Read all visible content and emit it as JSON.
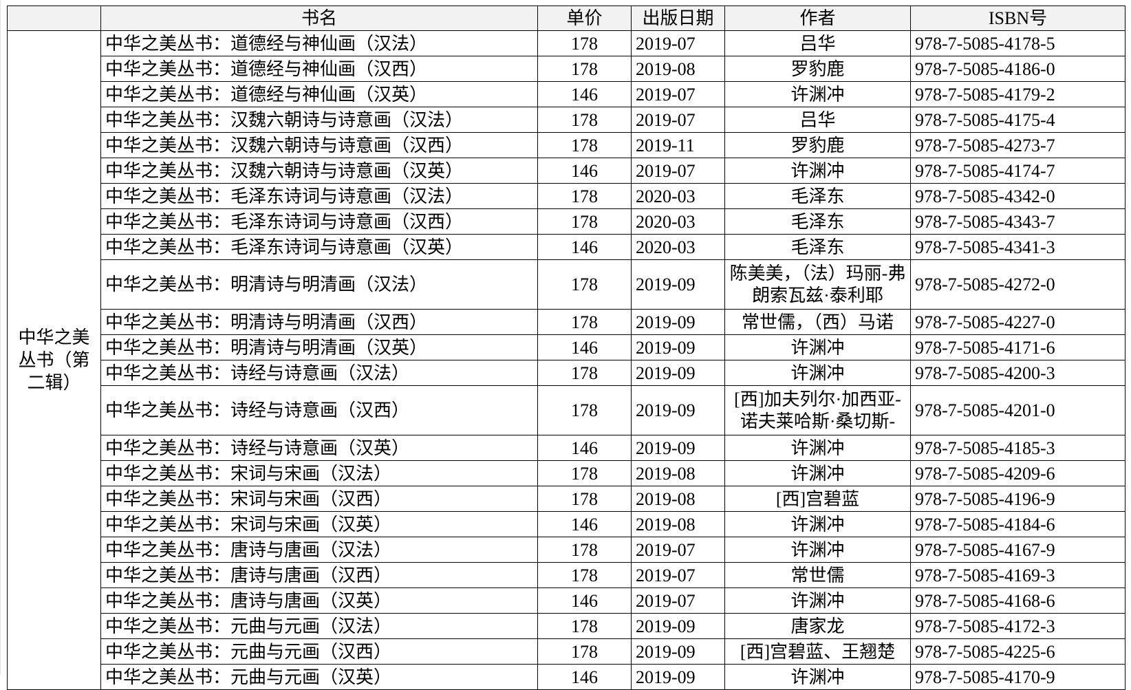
{
  "headers": {
    "corner": "",
    "title": "书名",
    "price": "单价",
    "date": "出版日期",
    "author": "作者",
    "isbn": "ISBN号"
  },
  "series_label": "中华之美丛书（第二辑）",
  "rows": [
    {
      "title": "中华之美丛书：道德经与神仙画（汉法）",
      "price": "178",
      "date": "2019-07",
      "author": "吕华",
      "isbn": "978-7-5085-4178-5"
    },
    {
      "title": "中华之美丛书：道德经与神仙画（汉西）",
      "price": "178",
      "date": "2019-08",
      "author": "罗豹鹿",
      "isbn": "978-7-5085-4186-0"
    },
    {
      "title": "中华之美丛书：道德经与神仙画（汉英）",
      "price": "146",
      "date": "2019-07",
      "author": "许渊冲",
      "isbn": "978-7-5085-4179-2"
    },
    {
      "title": "中华之美丛书：汉魏六朝诗与诗意画（汉法）",
      "price": "178",
      "date": "2019-07",
      "author": "吕华",
      "isbn": "978-7-5085-4175-4"
    },
    {
      "title": "中华之美丛书：汉魏六朝诗与诗意画（汉西）",
      "price": "178",
      "date": "2019-11",
      "author": "罗豹鹿",
      "isbn": "978-7-5085-4273-7"
    },
    {
      "title": "中华之美丛书：汉魏六朝诗与诗意画（汉英）",
      "price": "146",
      "date": "2019-07",
      "author": "许渊冲",
      "isbn": "978-7-5085-4174-7"
    },
    {
      "title": "中华之美丛书：毛泽东诗词与诗意画（汉法）",
      "price": "178",
      "date": "2020-03",
      "author": "毛泽东",
      "isbn": "978-7-5085-4342-0"
    },
    {
      "title": "中华之美丛书：毛泽东诗词与诗意画（汉西）",
      "price": "178",
      "date": "2020-03",
      "author": "毛泽东",
      "isbn": "978-7-5085-4343-7"
    },
    {
      "title": "中华之美丛书：毛泽东诗词与诗意画（汉英）",
      "price": "146",
      "date": "2020-03",
      "author": "毛泽东",
      "isbn": "978-7-5085-4341-3"
    },
    {
      "title": "中华之美丛书：明清诗与明清画（汉法）",
      "price": "178",
      "date": "2019-09",
      "author": "陈美美，（法）玛丽-弗朗索瓦兹·泰利耶",
      "isbn": "978-7-5085-4272-0",
      "double": true
    },
    {
      "title": "中华之美丛书：明清诗与明清画（汉西）",
      "price": "178",
      "date": "2019-09",
      "author": "常世儒，（西）马诺",
      "isbn": "978-7-5085-4227-0"
    },
    {
      "title": "中华之美丛书：明清诗与明清画（汉英）",
      "price": "146",
      "date": "2019-09",
      "author": "许渊冲",
      "isbn": "978-7-5085-4171-6"
    },
    {
      "title": "中华之美丛书：诗经与诗意画（汉法）",
      "price": "178",
      "date": "2019-09",
      "author": "许渊冲",
      "isbn": "978-7-5085-4200-3"
    },
    {
      "title": "中华之美丛书：诗经与诗意画（汉西）",
      "price": "178",
      "date": "2019-09",
      "author": "[西]加夫列尔·加西亚-诺夫莱哈斯·桑切斯-",
      "isbn": "978-7-5085-4201-0",
      "double": true
    },
    {
      "title": "中华之美丛书：诗经与诗意画（汉英）",
      "price": "146",
      "date": "2019-09",
      "author": "许渊冲",
      "isbn": "978-7-5085-4185-3"
    },
    {
      "title": "中华之美丛书：宋词与宋画（汉法）",
      "price": "178",
      "date": "2019-08",
      "author": "许渊冲",
      "isbn": "978-7-5085-4209-6"
    },
    {
      "title": "中华之美丛书：宋词与宋画（汉西）",
      "price": "178",
      "date": "2019-08",
      "author": "[西]宫碧蓝",
      "isbn": "978-7-5085-4196-9"
    },
    {
      "title": "中华之美丛书：宋词与宋画（汉英）",
      "price": "146",
      "date": "2019-08",
      "author": "许渊冲",
      "isbn": "978-7-5085-4184-6"
    },
    {
      "title": "中华之美丛书：唐诗与唐画（汉法）",
      "price": "178",
      "date": "2019-07",
      "author": "许渊冲",
      "isbn": "978-7-5085-4167-9"
    },
    {
      "title": "中华之美丛书：唐诗与唐画（汉西）",
      "price": "178",
      "date": "2019-07",
      "author": "常世儒",
      "isbn": "978-7-5085-4169-3"
    },
    {
      "title": "中华之美丛书：唐诗与唐画（汉英）",
      "price": "146",
      "date": "2019-07",
      "author": "许渊冲",
      "isbn": "978-7-5085-4168-6"
    },
    {
      "title": "中华之美丛书：元曲与元画（汉法）",
      "price": "178",
      "date": "2019-09",
      "author": "唐家龙",
      "isbn": "978-7-5085-4172-3"
    },
    {
      "title": "中华之美丛书：元曲与元画（汉西）",
      "price": "178",
      "date": "2019-09",
      "author": "[西]宫碧蓝、王翘楚",
      "isbn": "978-7-5085-4225-6"
    },
    {
      "title": "中华之美丛书：元曲与元画（汉英）",
      "price": "146",
      "date": "2019-09",
      "author": "许渊冲",
      "isbn": "978-7-5085-4170-9"
    }
  ]
}
